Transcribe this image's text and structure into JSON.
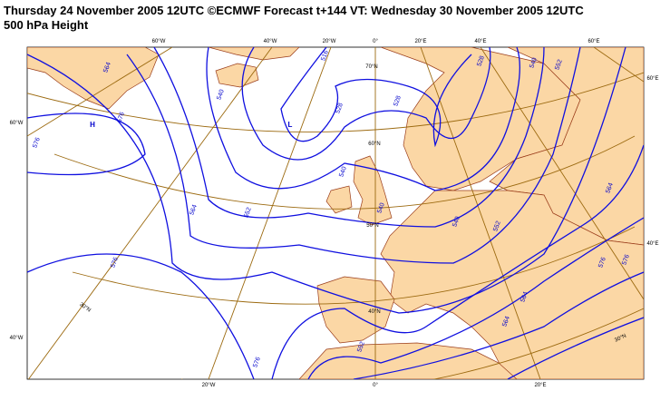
{
  "header": {
    "title": "Thursday 24 November 2005 12UTC ©ECMWF Forecast t+144 VT: Wednesday 30 November 2005 12UTC",
    "subtitle": "500 hPa Height"
  },
  "graticule_labels": [
    "60°W",
    "40°W",
    "20°W",
    "0°",
    "20°E",
    "40°E",
    "60°E",
    "60°E",
    "40°E",
    "30°N",
    "60°W",
    "40°W",
    "20°W",
    "0°",
    "20°E",
    "70°N",
    "60°N",
    "50°N",
    "40°N",
    "30°N"
  ],
  "contour_labels": [
    "516",
    "528",
    "528",
    "540",
    "552",
    "564",
    "540",
    "576",
    "576",
    "540",
    "564",
    "552",
    "540",
    "540",
    "552",
    "564",
    "576",
    "576",
    "552",
    "564",
    "576",
    "564",
    "576",
    "528"
  ],
  "pressure_centers": [
    "H",
    "L"
  ]
}
